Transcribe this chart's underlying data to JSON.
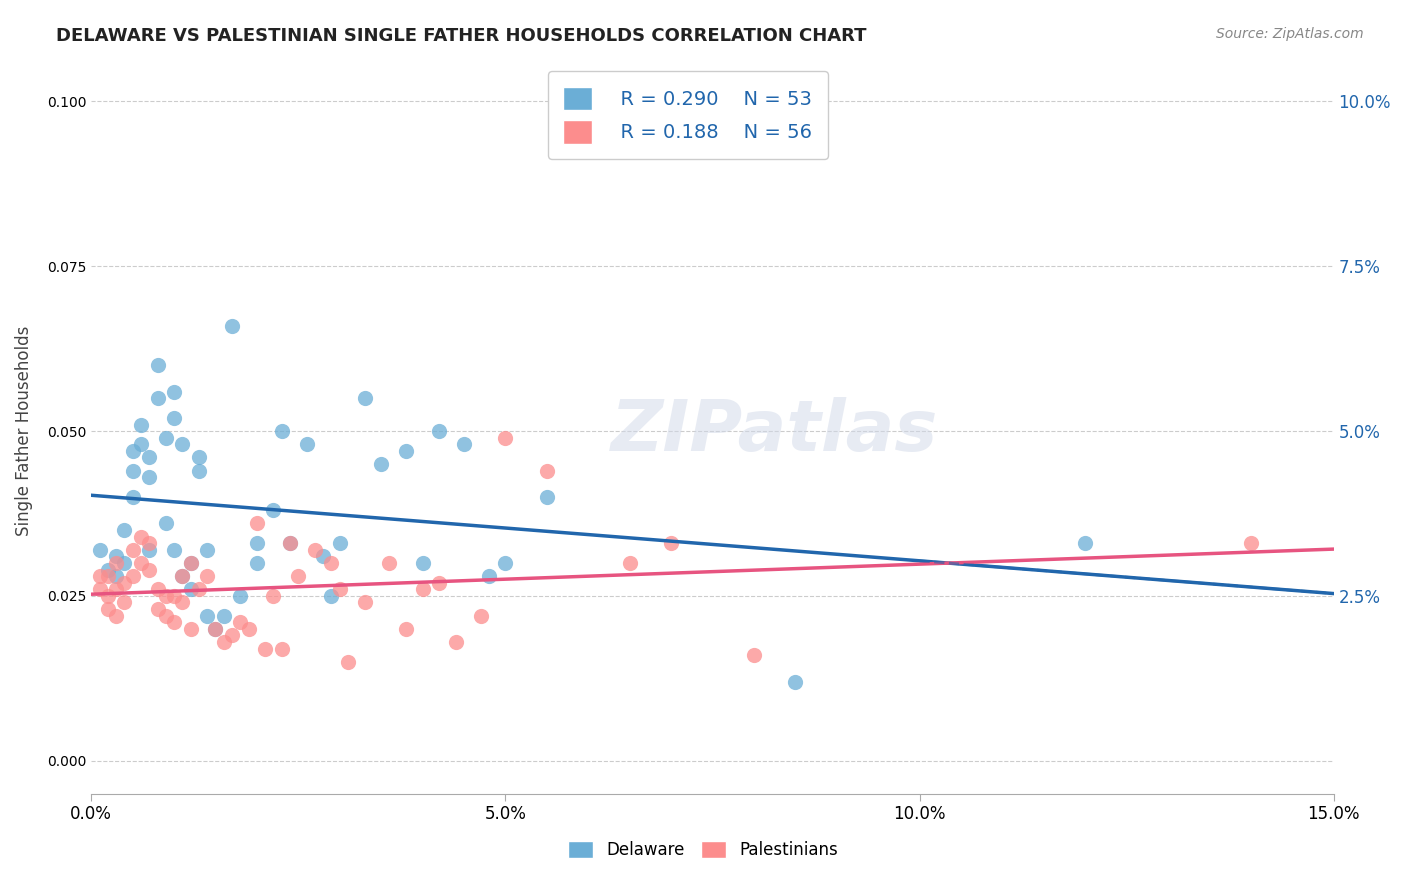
{
  "title": "DELAWARE VS PALESTINIAN SINGLE FATHER HOUSEHOLDS CORRELATION CHART",
  "source": "Source: ZipAtlas.com",
  "ylabel": "Single Father Households",
  "xlabel_ticks": [
    "0.0%",
    "5.0%",
    "10.0%",
    "15.0%"
  ],
  "ylabel_ticks": [
    "0.0%",
    "2.5%",
    "5.0%",
    "7.5%",
    "10.0%"
  ],
  "xlim": [
    0.0,
    0.15
  ],
  "ylim": [
    -0.005,
    0.105
  ],
  "watermark": "ZIPatlas",
  "legend_r1": "R = 0.290",
  "legend_n1": "N = 53",
  "legend_r2": "R = 0.188",
  "legend_n2": "N = 56",
  "delaware_color": "#6baed6",
  "palestinian_color": "#fc8d8d",
  "line_delaware_color": "#2166ac",
  "line_palestinian_color": "#e75480",
  "delaware_x": [
    0.001,
    0.002,
    0.003,
    0.003,
    0.004,
    0.004,
    0.005,
    0.005,
    0.005,
    0.006,
    0.006,
    0.007,
    0.007,
    0.007,
    0.008,
    0.008,
    0.009,
    0.009,
    0.01,
    0.01,
    0.01,
    0.011,
    0.011,
    0.012,
    0.012,
    0.013,
    0.013,
    0.014,
    0.014,
    0.015,
    0.016,
    0.017,
    0.018,
    0.02,
    0.02,
    0.022,
    0.023,
    0.024,
    0.026,
    0.028,
    0.029,
    0.03,
    0.033,
    0.035,
    0.038,
    0.04,
    0.042,
    0.045,
    0.048,
    0.05,
    0.055,
    0.12,
    0.085
  ],
  "delaware_y": [
    0.032,
    0.029,
    0.031,
    0.028,
    0.035,
    0.03,
    0.047,
    0.044,
    0.04,
    0.051,
    0.048,
    0.046,
    0.043,
    0.032,
    0.06,
    0.055,
    0.049,
    0.036,
    0.056,
    0.052,
    0.032,
    0.048,
    0.028,
    0.03,
    0.026,
    0.044,
    0.046,
    0.032,
    0.022,
    0.02,
    0.022,
    0.066,
    0.025,
    0.03,
    0.033,
    0.038,
    0.05,
    0.033,
    0.048,
    0.031,
    0.025,
    0.033,
    0.055,
    0.045,
    0.047,
    0.03,
    0.05,
    0.048,
    0.028,
    0.03,
    0.04,
    0.033,
    0.012
  ],
  "palestinian_x": [
    0.001,
    0.001,
    0.002,
    0.002,
    0.002,
    0.003,
    0.003,
    0.003,
    0.004,
    0.004,
    0.005,
    0.005,
    0.006,
    0.006,
    0.007,
    0.007,
    0.008,
    0.008,
    0.009,
    0.009,
    0.01,
    0.01,
    0.011,
    0.011,
    0.012,
    0.012,
    0.013,
    0.014,
    0.015,
    0.016,
    0.017,
    0.018,
    0.019,
    0.02,
    0.021,
    0.022,
    0.023,
    0.024,
    0.025,
    0.027,
    0.029,
    0.03,
    0.031,
    0.033,
    0.036,
    0.038,
    0.04,
    0.042,
    0.044,
    0.047,
    0.05,
    0.055,
    0.065,
    0.07,
    0.08,
    0.14
  ],
  "palestinian_y": [
    0.028,
    0.026,
    0.028,
    0.025,
    0.023,
    0.03,
    0.026,
    0.022,
    0.027,
    0.024,
    0.032,
    0.028,
    0.034,
    0.03,
    0.033,
    0.029,
    0.026,
    0.023,
    0.025,
    0.022,
    0.025,
    0.021,
    0.028,
    0.024,
    0.03,
    0.02,
    0.026,
    0.028,
    0.02,
    0.018,
    0.019,
    0.021,
    0.02,
    0.036,
    0.017,
    0.025,
    0.017,
    0.033,
    0.028,
    0.032,
    0.03,
    0.026,
    0.015,
    0.024,
    0.03,
    0.02,
    0.026,
    0.027,
    0.018,
    0.022,
    0.049,
    0.044,
    0.03,
    0.033,
    0.016,
    0.033
  ],
  "background_color": "#ffffff",
  "grid_color": "#cccccc"
}
